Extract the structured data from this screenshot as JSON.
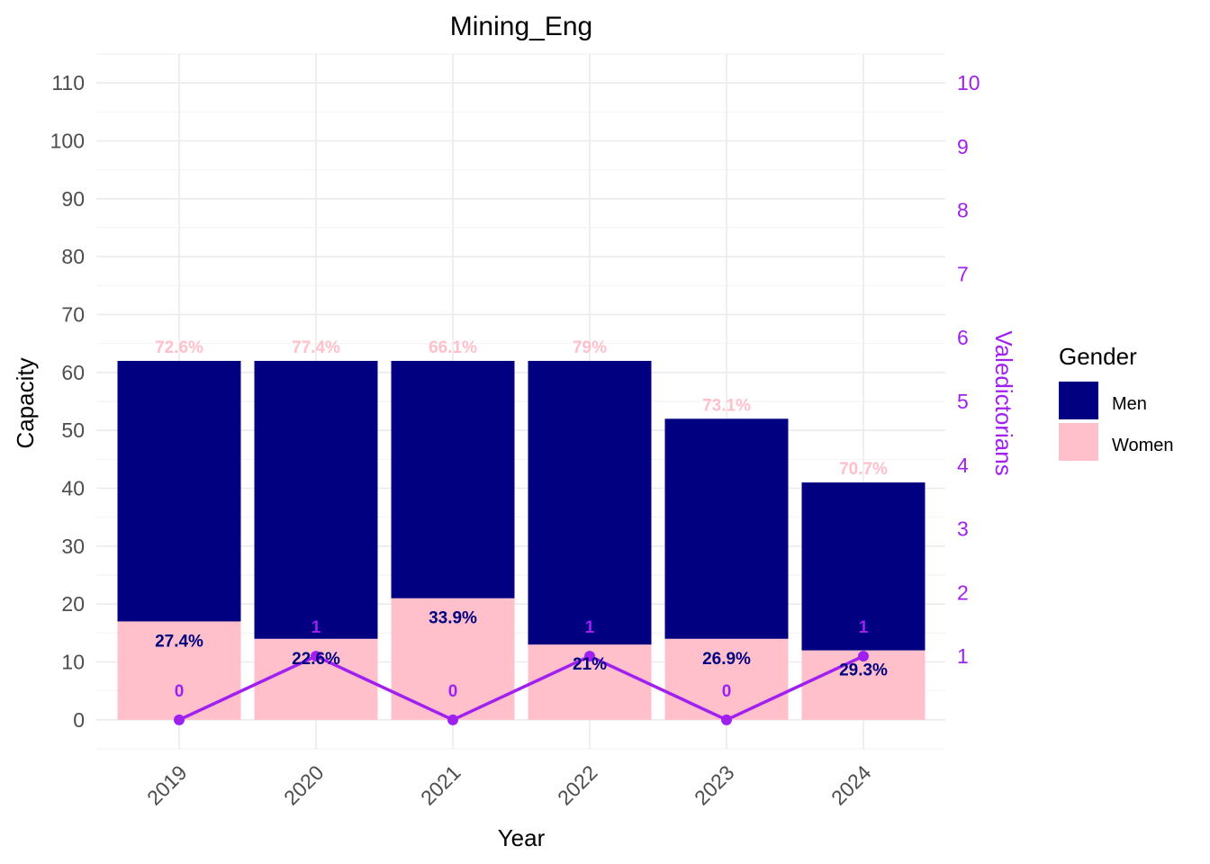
{
  "chart_data": {
    "type": "bar",
    "stacked": true,
    "title": "Mining_Eng",
    "xlabel": "Year",
    "ylabel": "Capacity",
    "y2label": "Valedictorians",
    "categories": [
      "2019",
      "2020",
      "2021",
      "2022",
      "2023",
      "2024"
    ],
    "ylim": [
      -5,
      115
    ],
    "yticks": [
      0,
      10,
      20,
      30,
      40,
      50,
      60,
      70,
      80,
      90,
      100,
      110
    ],
    "y2ticks": [
      1,
      2,
      3,
      4,
      5,
      6,
      7,
      8,
      9,
      10
    ],
    "series": [
      {
        "name": "Women",
        "color": "#ffc0cb",
        "values": [
          17,
          14,
          21,
          13,
          14,
          12
        ],
        "labels": [
          "27.4%",
          "22.6%",
          "33.9%",
          "21%",
          "26.9%",
          "29.3%"
        ],
        "label_color": "#000080"
      },
      {
        "name": "Men",
        "color": "#000080",
        "values": [
          45,
          48,
          41,
          49,
          38,
          29
        ],
        "labels": [
          "72.6%",
          "77.4%",
          "66.1%",
          "79%",
          "73.1%",
          "70.7%"
        ],
        "label_color": "#ffc0cb"
      }
    ],
    "line": {
      "name": "Valedictorians",
      "color": "#a020f0",
      "values": [
        0,
        1,
        0,
        1,
        0,
        1
      ],
      "labels": [
        "0",
        "1",
        "0",
        "1",
        "0",
        "1"
      ]
    },
    "legend": {
      "title": "Gender",
      "position": "right",
      "items": [
        {
          "label": "Men",
          "color": "#000080"
        },
        {
          "label": "Women",
          "color": "#ffc0cb"
        }
      ]
    },
    "grid": true
  }
}
